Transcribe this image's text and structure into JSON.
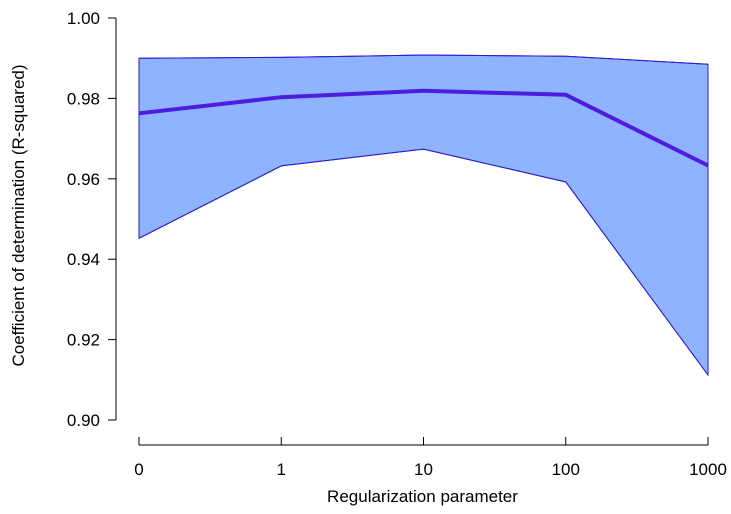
{
  "chart_data": {
    "type": "area",
    "xlabel": "Regularization parameter",
    "ylabel": "Coefficient of determination (R-squared)",
    "x_scale": "categorical",
    "categories": [
      "0",
      "1",
      "10",
      "100",
      "1000"
    ],
    "ylim": [
      0.9,
      1.0
    ],
    "yticks": [
      0.9,
      0.92,
      0.94,
      0.96,
      0.98,
      1.0
    ],
    "ytick_labels": [
      "0.90",
      "0.92",
      "0.94",
      "0.96",
      "0.98",
      "1.00"
    ],
    "grid": false,
    "legend": "none",
    "series": [
      {
        "role": "band-upper",
        "values": [
          0.99,
          0.9902,
          0.9908,
          0.9905,
          0.9885
        ]
      },
      {
        "role": "band-lower",
        "values": [
          0.9452,
          0.9632,
          0.9674,
          0.9592,
          0.9112
        ]
      },
      {
        "role": "mean",
        "values": [
          0.9763,
          0.9803,
          0.9819,
          0.9809,
          0.9633
        ]
      }
    ],
    "colors": {
      "band_fill": "#8fb3ff",
      "band_edge": "#2a1ecf",
      "mean_line": "#4b1de0",
      "axis": "#000000"
    }
  }
}
